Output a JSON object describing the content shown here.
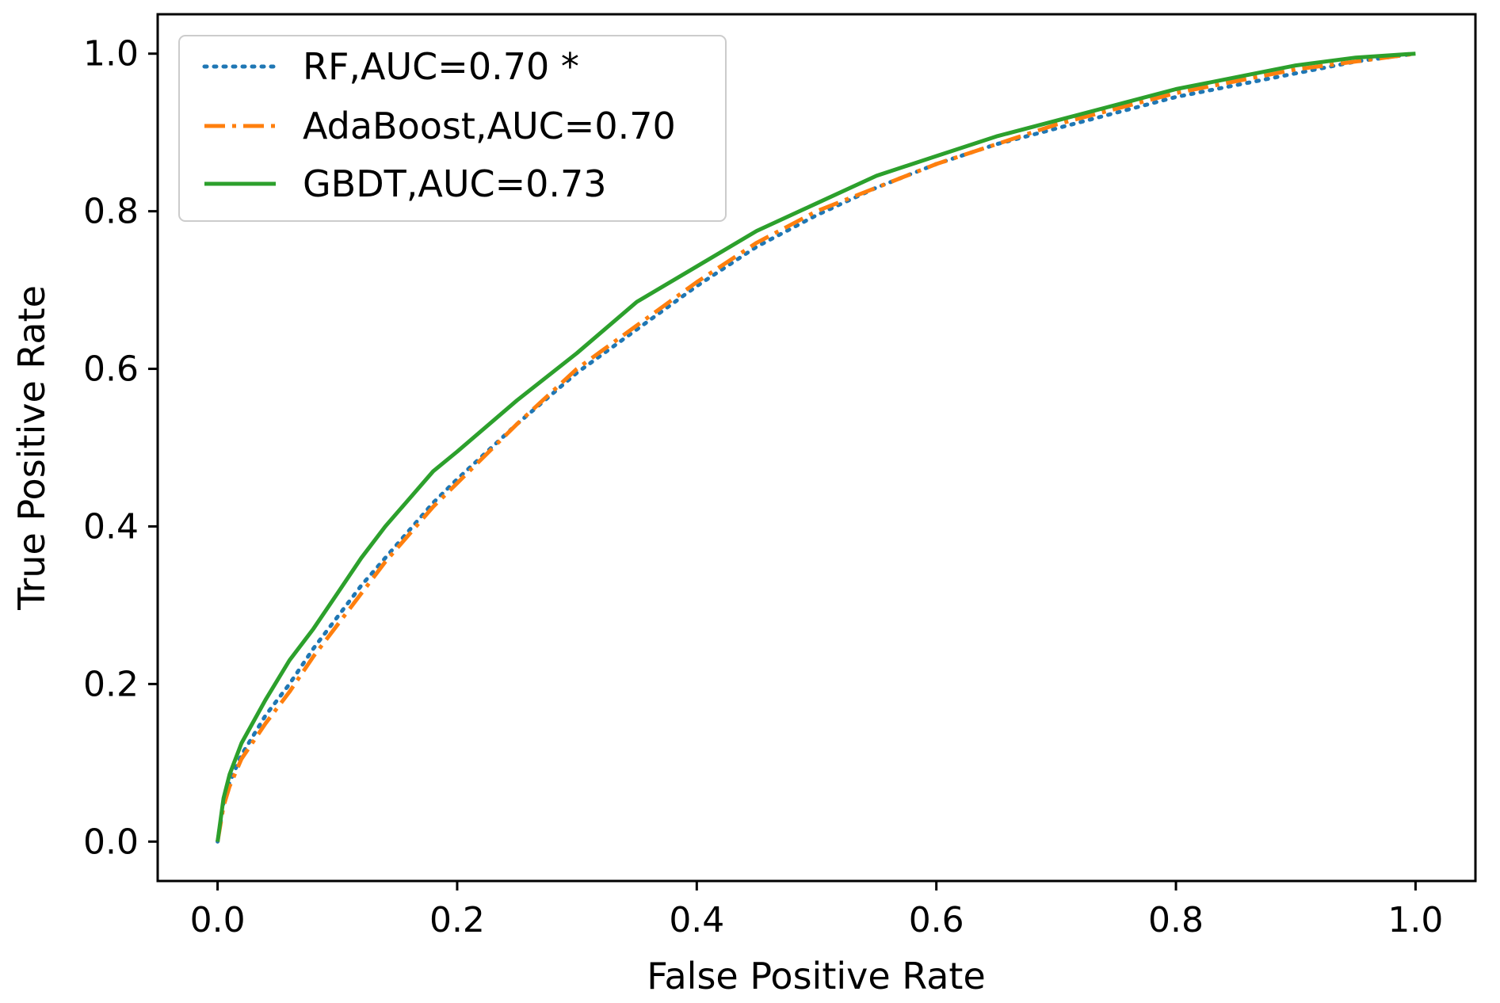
{
  "chart_data": {
    "type": "line",
    "title": "",
    "xlabel": "False Positive Rate",
    "ylabel": "True Positive Rate",
    "xlim": [
      -0.05,
      1.05
    ],
    "ylim": [
      -0.05,
      1.05
    ],
    "xticks": [
      "0.0",
      "0.2",
      "0.4",
      "0.6",
      "0.8",
      "1.0"
    ],
    "yticks": [
      "0.0",
      "0.2",
      "0.4",
      "0.6",
      "0.8",
      "1.0"
    ],
    "grid": false,
    "legend_position": "top-left",
    "series": [
      {
        "name": "RF,AUC=0.70 *",
        "color": "#1f77b4",
        "style": "dotted",
        "x": [
          0,
          0.005,
          0.01,
          0.02,
          0.04,
          0.06,
          0.08,
          0.1,
          0.12,
          0.14,
          0.16,
          0.18,
          0.2,
          0.25,
          0.3,
          0.35,
          0.4,
          0.45,
          0.5,
          0.55,
          0.6,
          0.65,
          0.7,
          0.75,
          0.8,
          0.85,
          0.9,
          0.95,
          1.0
        ],
        "y": [
          0,
          0.05,
          0.075,
          0.11,
          0.16,
          0.2,
          0.245,
          0.285,
          0.325,
          0.36,
          0.395,
          0.43,
          0.46,
          0.53,
          0.595,
          0.65,
          0.705,
          0.755,
          0.795,
          0.83,
          0.86,
          0.885,
          0.905,
          0.925,
          0.945,
          0.96,
          0.975,
          0.99,
          1.0
        ]
      },
      {
        "name": "AdaBoost,AUC=0.70",
        "color": "#ff7f0e",
        "style": "dashdot",
        "x": [
          0,
          0.005,
          0.01,
          0.02,
          0.04,
          0.06,
          0.08,
          0.1,
          0.12,
          0.14,
          0.16,
          0.18,
          0.2,
          0.25,
          0.3,
          0.35,
          0.4,
          0.45,
          0.5,
          0.55,
          0.6,
          0.65,
          0.7,
          0.75,
          0.8,
          0.85,
          0.9,
          0.95,
          1.0
        ],
        "y": [
          0,
          0.045,
          0.07,
          0.105,
          0.15,
          0.19,
          0.235,
          0.275,
          0.315,
          0.355,
          0.39,
          0.425,
          0.455,
          0.53,
          0.6,
          0.655,
          0.71,
          0.76,
          0.8,
          0.83,
          0.86,
          0.885,
          0.91,
          0.93,
          0.95,
          0.965,
          0.98,
          0.99,
          1.0
        ]
      },
      {
        "name": "GBDT,AUC=0.73",
        "color": "#2ca02c",
        "style": "solid",
        "x": [
          0,
          0.005,
          0.01,
          0.02,
          0.04,
          0.06,
          0.08,
          0.1,
          0.12,
          0.14,
          0.16,
          0.18,
          0.2,
          0.25,
          0.3,
          0.35,
          0.4,
          0.45,
          0.5,
          0.55,
          0.6,
          0.65,
          0.7,
          0.75,
          0.8,
          0.85,
          0.9,
          0.95,
          1.0
        ],
        "y": [
          0,
          0.055,
          0.085,
          0.125,
          0.18,
          0.23,
          0.27,
          0.315,
          0.36,
          0.4,
          0.435,
          0.47,
          0.495,
          0.56,
          0.62,
          0.685,
          0.73,
          0.775,
          0.81,
          0.845,
          0.87,
          0.895,
          0.915,
          0.935,
          0.955,
          0.97,
          0.985,
          0.995,
          1.0
        ]
      }
    ]
  }
}
